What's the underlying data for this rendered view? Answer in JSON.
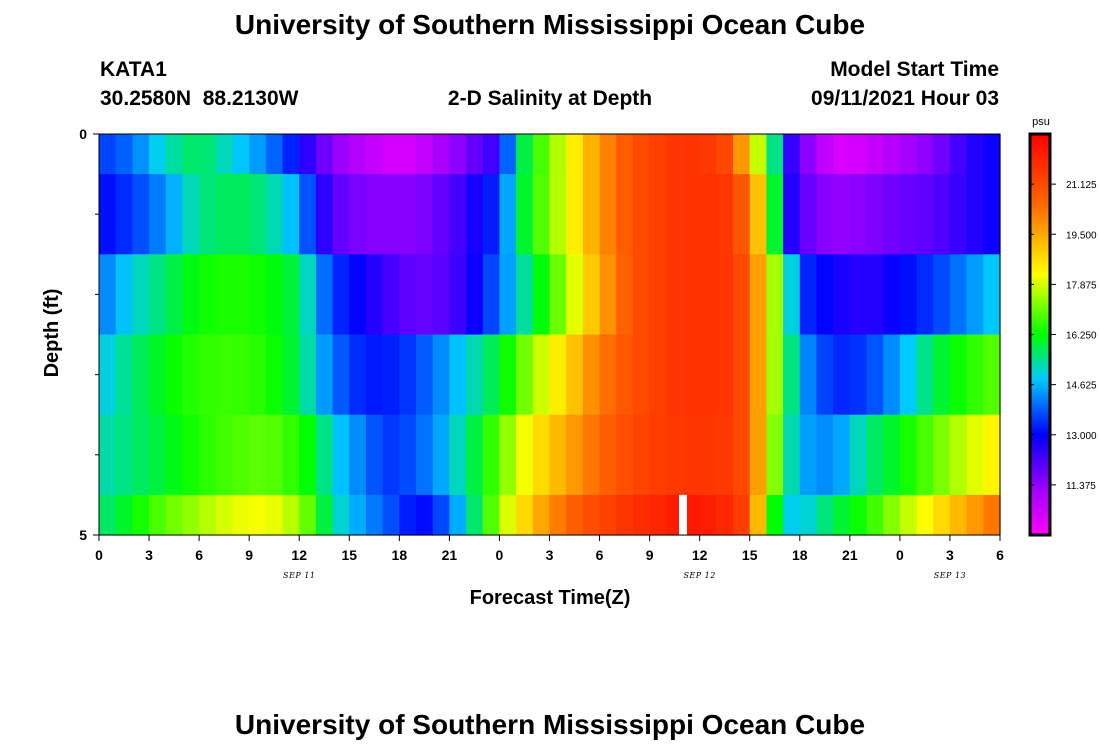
{
  "page": {
    "title_top": "University of Southern Mississippi Ocean Cube",
    "title_bottom": "University of Southern Mississippi Ocean Cube",
    "station_id": "KATA1",
    "station_coords": "30.2580N  88.2130W",
    "plot_title": "2-D Salinity at Depth",
    "model_label": "Model Start Time",
    "model_time": "09/11/2021 Hour 03"
  },
  "chart_data": {
    "type": "heatmap",
    "title": "2-D Salinity at Depth",
    "xlabel": "Forecast Time(Z)",
    "ylabel": "Depth (ft)",
    "x_range_hours": [
      0,
      54
    ],
    "x_ticks": [
      {
        "h": 0,
        "label": "0"
      },
      {
        "h": 3,
        "label": "3"
      },
      {
        "h": 6,
        "label": "6"
      },
      {
        "h": 9,
        "label": "9"
      },
      {
        "h": 12,
        "label": "12"
      },
      {
        "h": 15,
        "label": "15"
      },
      {
        "h": 18,
        "label": "18"
      },
      {
        "h": 21,
        "label": "21"
      },
      {
        "h": 24,
        "label": "0"
      },
      {
        "h": 27,
        "label": "3"
      },
      {
        "h": 30,
        "label": "6"
      },
      {
        "h": 33,
        "label": "9"
      },
      {
        "h": 36,
        "label": "12"
      },
      {
        "h": 39,
        "label": "15"
      },
      {
        "h": 42,
        "label": "18"
      },
      {
        "h": 45,
        "label": "21"
      },
      {
        "h": 48,
        "label": "0"
      },
      {
        "h": 51,
        "label": "3"
      },
      {
        "h": 54,
        "label": "6"
      }
    ],
    "date_labels": [
      {
        "h": 12,
        "label": "SEP 11"
      },
      {
        "h": 36,
        "label": "SEP 12"
      },
      {
        "h": 51,
        "label": "SEP 13"
      }
    ],
    "y_range": [
      0,
      5
    ],
    "y_tick_labels": [
      {
        "v": 0,
        "label": "0"
      },
      {
        "v": 5,
        "label": "5"
      }
    ],
    "y_minor_ticks": [
      1,
      2,
      3,
      4
    ],
    "depth_layers": [
      {
        "top": 0,
        "bottom": 0.5
      },
      {
        "top": 0.5,
        "bottom": 1.5
      },
      {
        "top": 1.5,
        "bottom": 2.5
      },
      {
        "top": 2.5,
        "bottom": 3.5
      },
      {
        "top": 3.5,
        "bottom": 4.5
      },
      {
        "top": 4.5,
        "bottom": 5
      }
    ],
    "salinity_psu": [
      {
        "x": [
          0,
          2,
          4,
          6,
          8,
          10,
          12,
          13,
          15,
          18,
          20,
          24,
          25,
          26,
          28,
          30,
          32,
          34,
          36,
          38,
          39,
          40,
          40.5,
          41,
          42,
          44,
          46,
          48,
          50,
          52,
          54
        ],
        "v": [
          13.5,
          14.0,
          15.2,
          15.8,
          15.0,
          14.2,
          13.0,
          12.0,
          11.0,
          10.3,
          10.8,
          12.5,
          15.3,
          16.4,
          18.0,
          19.8,
          21.0,
          21.5,
          21.7,
          21.0,
          18.5,
          17.0,
          15.5,
          13.0,
          11.8,
          10.3,
          10.5,
          11.0,
          11.5,
          12.5,
          13.0
        ]
      },
      {
        "x": [
          0,
          2,
          4,
          6,
          8,
          10,
          12,
          13,
          14,
          16,
          19,
          21,
          24,
          25,
          26,
          28,
          30,
          32,
          34,
          36,
          38,
          39,
          40,
          40.5,
          41,
          42,
          44,
          46,
          48,
          50,
          52,
          54
        ],
        "v": [
          13.0,
          13.5,
          14.3,
          15.5,
          15.8,
          15.5,
          14.5,
          13.0,
          12.0,
          11.5,
          11.5,
          12.0,
          13.5,
          15.5,
          16.5,
          18.0,
          19.8,
          21.0,
          21.5,
          21.7,
          21.5,
          20.2,
          18.0,
          16.0,
          13.2,
          12.0,
          11.3,
          11.5,
          11.8,
          12.0,
          12.5,
          13.0
        ]
      },
      {
        "x": [
          0,
          2,
          4,
          6,
          8,
          10,
          12,
          13,
          14,
          16,
          18,
          20,
          22,
          24,
          26,
          28,
          30,
          32,
          34,
          36,
          38,
          39,
          40,
          41,
          42,
          44,
          46,
          48,
          50,
          52,
          54
        ],
        "v": [
          14.0,
          15.0,
          15.7,
          16.3,
          16.5,
          16.3,
          15.8,
          14.5,
          13.5,
          12.8,
          12.0,
          11.8,
          12.5,
          14.0,
          15.8,
          17.5,
          19.5,
          21.0,
          21.5,
          21.7,
          21.5,
          20.8,
          18.5,
          16.5,
          13.5,
          12.8,
          12.5,
          13.0,
          13.5,
          14.2,
          15.0
        ]
      },
      {
        "x": [
          0,
          2,
          4,
          6,
          8,
          10,
          12,
          13,
          14,
          16,
          18,
          20,
          22,
          24,
          26,
          28,
          30,
          32,
          34,
          36,
          38,
          39,
          40,
          41,
          42,
          44,
          46,
          48,
          50,
          52,
          54
        ],
        "v": [
          14.8,
          15.6,
          16.2,
          16.6,
          16.7,
          16.5,
          15.8,
          14.8,
          14.0,
          13.2,
          13.3,
          14.0,
          15.0,
          16.0,
          17.5,
          18.8,
          20.2,
          21.0,
          21.5,
          21.7,
          21.5,
          20.8,
          18.5,
          16.5,
          14.5,
          13.3,
          13.5,
          14.5,
          15.8,
          16.5,
          17.0
        ]
      },
      {
        "x": [
          0,
          2,
          4,
          6,
          8,
          10,
          12,
          13,
          14,
          16,
          17,
          18,
          20,
          22,
          24,
          26,
          28,
          30,
          32,
          34,
          36,
          38,
          39,
          40,
          41,
          42,
          44,
          46,
          48,
          50,
          52,
          54
        ],
        "v": [
          15.2,
          15.6,
          16.0,
          16.5,
          16.8,
          17.0,
          16.5,
          16.0,
          15.0,
          14.0,
          13.5,
          13.5,
          14.2,
          15.5,
          17.0,
          18.5,
          19.5,
          20.5,
          21.2,
          21.5,
          21.6,
          21.5,
          20.8,
          18.5,
          16.0,
          14.5,
          14.2,
          15.5,
          16.2,
          17.0,
          17.8,
          18.5
        ]
      },
      {
        "x": [
          0,
          2,
          4,
          6,
          8,
          10,
          12,
          13,
          14,
          16,
          18,
          19,
          20,
          22,
          24,
          26,
          28,
          30,
          32,
          34,
          35,
          36,
          38,
          39,
          40,
          41,
          42,
          44,
          46,
          48,
          50,
          52,
          54
        ],
        "v": [
          15.5,
          16.2,
          17.0,
          17.5,
          18.0,
          18.2,
          17.5,
          16.5,
          15.3,
          14.3,
          13.5,
          13.0,
          13.2,
          15.0,
          17.5,
          19.2,
          20.5,
          21.2,
          21.7,
          22.0,
          22.2,
          22.2,
          21.8,
          21.0,
          17.5,
          15.0,
          14.8,
          15.8,
          16.5,
          17.5,
          18.5,
          19.5,
          20.5
        ]
      }
    ],
    "colorbar": {
      "unit": "psu",
      "min": 9.75,
      "max": 22.75,
      "ticks": [
        "21.125",
        "19.500",
        "17.875",
        "16.250",
        "14.625",
        "13.000",
        "11.375"
      ],
      "stops": [
        {
          "v": 9.75,
          "c": "#ff00ff"
        },
        {
          "v": 11.2,
          "c": "#a000ff"
        },
        {
          "v": 13.0,
          "c": "#0000ff"
        },
        {
          "v": 14.8,
          "c": "#00c8ff"
        },
        {
          "v": 16.25,
          "c": "#00ff00"
        },
        {
          "v": 18.2,
          "c": "#ffff00"
        },
        {
          "v": 20.5,
          "c": "#ff6600"
        },
        {
          "v": 22.75,
          "c": "#ff0000"
        }
      ]
    },
    "current_time_marker_hour": 35
  }
}
